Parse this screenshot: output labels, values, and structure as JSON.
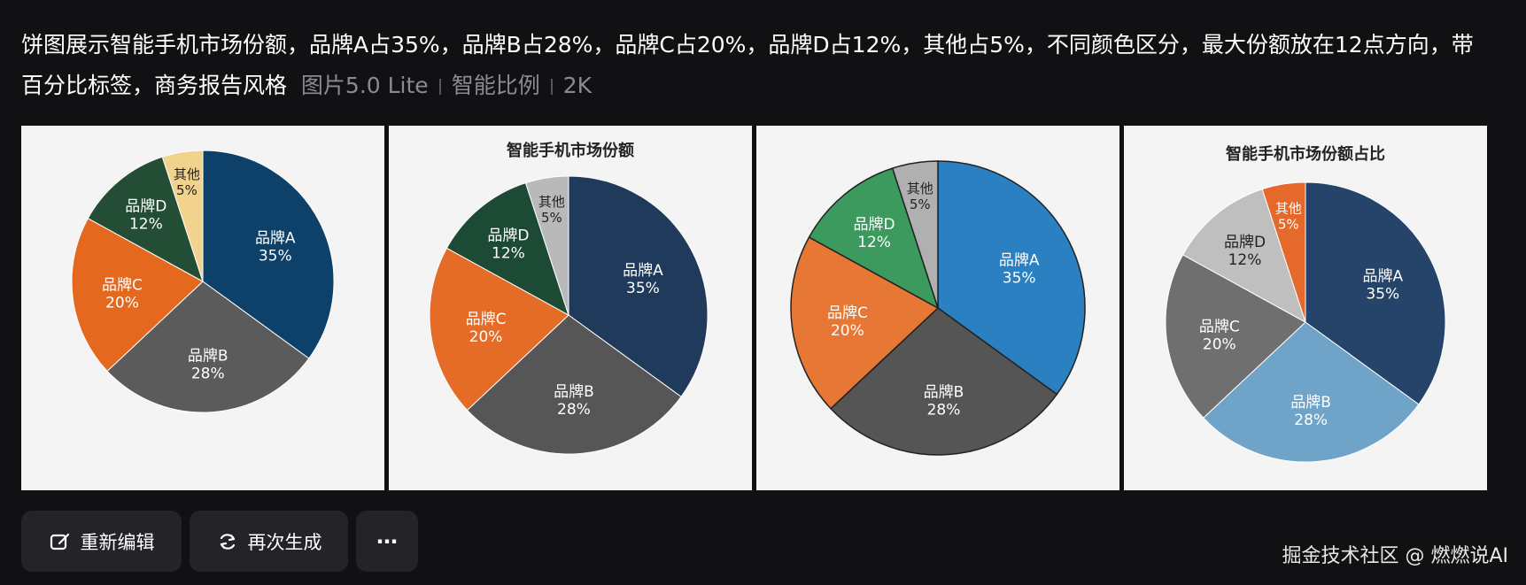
{
  "prompt": {
    "text": "饼图展示智能手机市场份额，品牌A占35%，品牌B占28%，品牌C占20%，品牌D占12%，其他占5%，不同颜色区分，最大份额放在12点方向，带百分比标签，商务报告风格",
    "model": "图片5.0 Lite",
    "ratio": "智能比例",
    "resolution": "2K"
  },
  "cards": [
    {
      "title": ""
    },
    {
      "title": "智能手机市场份额"
    },
    {
      "title": ""
    },
    {
      "title": "智能手机市场份额占比"
    }
  ],
  "chart_data": [
    {
      "type": "pie",
      "title": "",
      "slices": [
        {
          "label": "品牌A",
          "value": 35,
          "pct": "35%",
          "color": "#0d4169"
        },
        {
          "label": "品牌B",
          "value": 28,
          "pct": "28%",
          "color": "#5b5b5b"
        },
        {
          "label": "品牌C",
          "value": 20,
          "pct": "20%",
          "color": "#e4691f"
        },
        {
          "label": "品牌D",
          "value": 12,
          "pct": "12%",
          "color": "#234d34"
        },
        {
          "label": "其他",
          "value": 5,
          "pct": "5%",
          "color": "#f2d38e"
        }
      ]
    },
    {
      "type": "pie",
      "title": "智能手机市场份额",
      "slices": [
        {
          "label": "品牌A",
          "value": 35,
          "pct": "35%",
          "color": "#1f3a5a"
        },
        {
          "label": "品牌B",
          "value": 28,
          "pct": "28%",
          "color": "#565656"
        },
        {
          "label": "品牌C",
          "value": 20,
          "pct": "20%",
          "color": "#e46c27"
        },
        {
          "label": "品牌D",
          "value": 12,
          "pct": "12%",
          "color": "#1d4a35"
        },
        {
          "label": "其他",
          "value": 5,
          "pct": "5%",
          "color": "#b9b9b9"
        }
      ]
    },
    {
      "type": "pie",
      "title": "",
      "slices": [
        {
          "label": "品牌A",
          "value": 35,
          "pct": "35%",
          "color": "#2a80c0"
        },
        {
          "label": "品牌B",
          "value": 28,
          "pct": "28%",
          "color": "#555555"
        },
        {
          "label": "品牌C",
          "value": 20,
          "pct": "20%",
          "color": "#e67734"
        },
        {
          "label": "品牌D",
          "value": 12,
          "pct": "12%",
          "color": "#3c9a5f"
        },
        {
          "label": "其他",
          "value": 5,
          "pct": "5%",
          "color": "#b0b0b0"
        }
      ]
    },
    {
      "type": "pie",
      "title": "智能手机市场份额占比",
      "slices": [
        {
          "label": "品牌A",
          "value": 35,
          "pct": "35%",
          "color": "#26436a"
        },
        {
          "label": "品牌B",
          "value": 28,
          "pct": "28%",
          "color": "#6fa4c8"
        },
        {
          "label": "品牌C",
          "value": 20,
          "pct": "20%",
          "color": "#6f6f6f"
        },
        {
          "label": "品牌D",
          "value": 12,
          "pct": "12%",
          "color": "#bfbfbf"
        },
        {
          "label": "其他",
          "value": 5,
          "pct": "5%",
          "color": "#e4692a"
        }
      ]
    }
  ],
  "actions": {
    "edit_label": "重新编辑",
    "regenerate_label": "再次生成",
    "more_label": "⋯"
  },
  "watermark": "掘金技术社区 @ 燃燃说AI"
}
